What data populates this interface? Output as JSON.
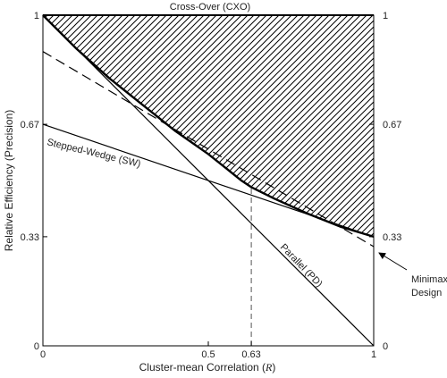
{
  "chart_data": {
    "type": "line",
    "xlabel": "Cluster-mean Correlation (",
    "xlabel_symbol": "R",
    "xlabel_close": ")",
    "ylabel": "Relative Efficiency (Precision)",
    "xlim": [
      0,
      1
    ],
    "ylim": [
      0,
      1
    ],
    "x_ticks": [
      {
        "value": 0,
        "label": "0"
      },
      {
        "value": 0.5,
        "label": "0.5"
      },
      {
        "value": 0.63,
        "label": "0.63"
      },
      {
        "value": 1,
        "label": "1"
      }
    ],
    "y_ticks": [
      {
        "value": 0,
        "label": "0"
      },
      {
        "value": 0.33,
        "label": "0.33"
      },
      {
        "value": 0.67,
        "label": "0.67"
      },
      {
        "value": 1,
        "label": "1"
      }
    ],
    "series": [
      {
        "name": "Cross-Over (CXO)",
        "style": "solid",
        "x": [
          0,
          1
        ],
        "y": [
          1,
          1
        ]
      },
      {
        "name": "Parallel (PD)",
        "style": "solid",
        "x": [
          0,
          1
        ],
        "y": [
          1,
          0
        ]
      },
      {
        "name": "Stepped-Wedge (SW)",
        "style": "solid",
        "x": [
          0,
          1
        ],
        "y": [
          0.67,
          0.33
        ]
      },
      {
        "name": "Minimax Design",
        "style": "dashed",
        "x": [
          0,
          1
        ],
        "y": [
          0.89,
          0.3
        ]
      },
      {
        "name": "Optimal boundary",
        "style": "bold",
        "x": [
          0,
          0.1,
          0.2,
          0.3,
          0.4,
          0.5,
          0.6,
          0.63,
          0.7,
          0.8,
          0.9,
          1.0
        ],
        "y": [
          1,
          0.9,
          0.81,
          0.73,
          0.65,
          0.58,
          0.5,
          0.48,
          0.445,
          0.4,
          0.36,
          0.33
        ]
      }
    ],
    "reference_line": {
      "x": 0.63,
      "style": "dashed"
    },
    "shaded_region": "hatched area between the optimal boundary and Cross-Over (CXO) line",
    "annotations": {
      "cxo": "Cross-Over (CXO)",
      "sw": "Stepped-Wedge (SW)",
      "pd": "Parallel (PD)",
      "minimax_line1": "Minimax",
      "minimax_line2": "Design"
    },
    "grid": false
  }
}
